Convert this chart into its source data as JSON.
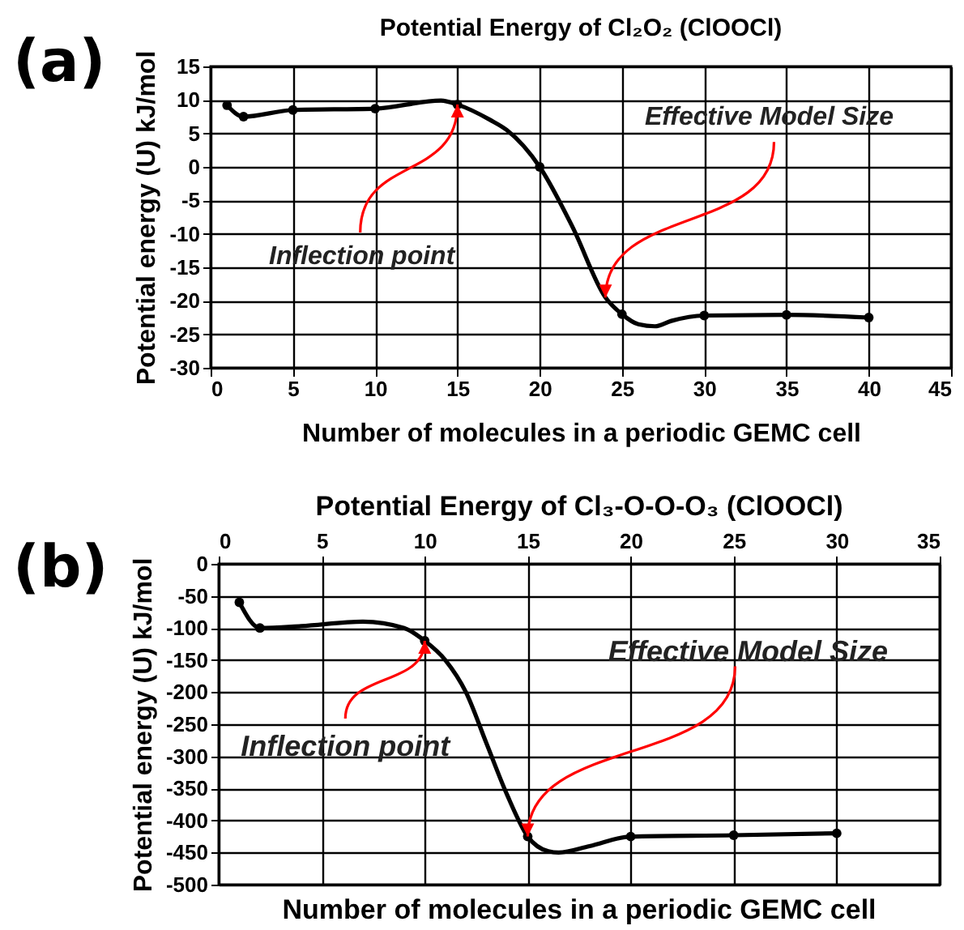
{
  "chart_data": [
    {
      "type": "line",
      "title": "Potential Energy of Cl₂O₂ (ClOOCl)",
      "xlabel": "Number of molecules in a periodic GEMC cell",
      "ylabel": "Potential energy (U) kJ/mol",
      "xlim": [
        0,
        45
      ],
      "xticks": [
        0,
        5,
        10,
        15,
        20,
        25,
        30,
        35,
        40,
        45
      ],
      "ylim": [
        -30,
        15
      ],
      "yticks": [
        -30,
        -25,
        -20,
        -15,
        -10,
        -5,
        0,
        5,
        10,
        15
      ],
      "grid": true,
      "annotations": [
        "(a)",
        {
          "text": "Inflection point",
          "x": 15,
          "y": 9.3
        },
        {
          "text": "Effective Model Size",
          "x": 24,
          "y": -19.5
        }
      ],
      "series": [
        {
          "type": "line",
          "color": "#000000",
          "marker": "none",
          "x": [
            1,
            2,
            5,
            10,
            14,
            15,
            17,
            18,
            20,
            22,
            24,
            25,
            26,
            27,
            28,
            30,
            35,
            40
          ],
          "values": [
            9.2,
            7.5,
            8.5,
            8.7,
            9.9,
            9.3,
            7,
            5.5,
            0,
            -9,
            -19.5,
            -22,
            -23.5,
            -23.8,
            -23,
            -22.2,
            -22.1,
            -22.5
          ]
        },
        {
          "type": "scatter",
          "color": "#000000",
          "marker": "circle",
          "x": [
            1,
            2,
            5,
            10,
            15,
            20,
            25,
            30,
            35,
            40
          ],
          "values": [
            9.2,
            7.5,
            8.5,
            8.7,
            9.3,
            0,
            -22,
            -22.2,
            -22.1,
            -22.5
          ]
        }
      ]
    },
    {
      "type": "line",
      "title": "Potential Energy of Cl₃-O-O-O₃ (ClOOCl)",
      "xlabel": "Number of molecules in a periodic GEMC cell",
      "ylabel": "Potential energy (U) kJ/mol",
      "xlim": [
        0,
        35
      ],
      "xticks": [
        0,
        5,
        10,
        15,
        20,
        25,
        30,
        35
      ],
      "ylim": [
        -500,
        0
      ],
      "yticks": [
        -500,
        -450,
        -400,
        -350,
        -300,
        -250,
        -200,
        -150,
        -100,
        -50,
        0
      ],
      "grid": true,
      "annotations": [
        "(b)",
        {
          "text": "Inflection point",
          "x": 10,
          "y": -120
        },
        {
          "text": "Effective Model Size",
          "x": 15,
          "y": -425
        }
      ],
      "series": [
        {
          "type": "line",
          "color": "#000000",
          "marker": "none",
          "x": [
            1,
            2,
            4,
            7,
            9,
            10,
            11,
            12,
            13,
            14,
            15,
            16,
            16.5,
            18,
            20,
            25,
            30
          ],
          "values": [
            -60,
            -100,
            -97,
            -90,
            -100,
            -120,
            -150,
            -200,
            -280,
            -360,
            -425,
            -448,
            -450,
            -440,
            -425,
            -423,
            -420
          ]
        },
        {
          "type": "scatter",
          "color": "#000000",
          "marker": "circle",
          "x": [
            1,
            2,
            10,
            15,
            20,
            25,
            30
          ],
          "values": [
            -60,
            -100,
            -120,
            -425,
            -425,
            -423,
            -420
          ]
        }
      ]
    }
  ]
}
